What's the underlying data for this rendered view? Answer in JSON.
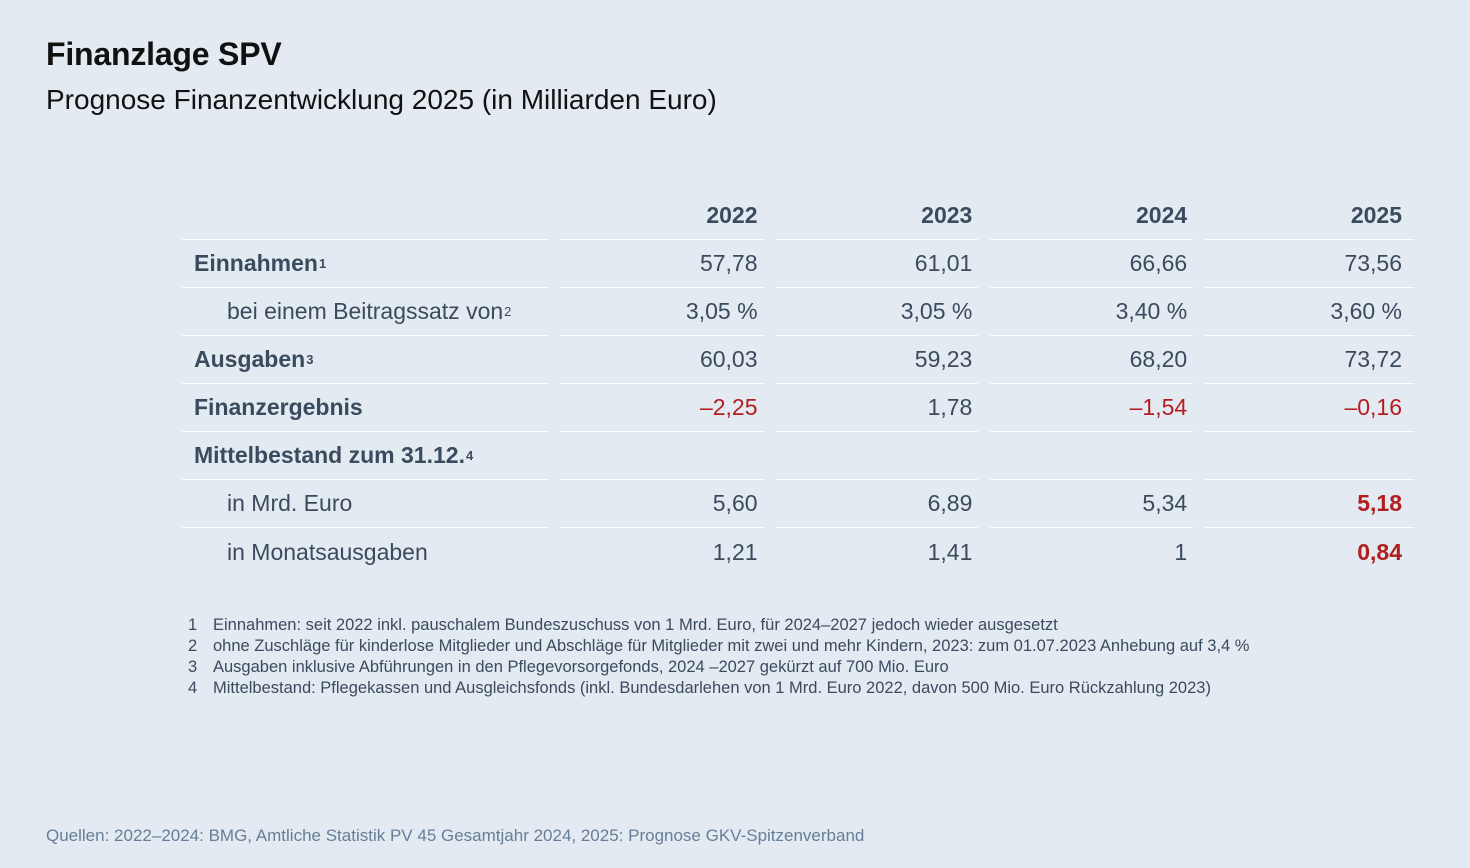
{
  "title": "Finanzlage SPV",
  "subtitle": "Prognose Finanzentwicklung 2025 (in Milliarden Euro)",
  "table": {
    "columns": [
      "2022",
      "2023",
      "2024",
      "2025"
    ],
    "rows": [
      {
        "label": "Einnahmen",
        "sup": "1",
        "values": [
          "57,78",
          "61,01",
          "66,66",
          "73,56"
        ]
      },
      {
        "label": "bei einem Beitragssatz von",
        "sup": "2",
        "values": [
          "3,05 %",
          "3,05 %",
          "3,40 %",
          "3,60 %"
        ]
      },
      {
        "label": "Ausgaben",
        "sup": "3",
        "values": [
          "60,03",
          "59,23",
          "68,20",
          "73,72"
        ]
      },
      {
        "label": "Finanzergebnis",
        "values": [
          "–2,25",
          "1,78",
          "–1,54",
          "–0,16"
        ]
      },
      {
        "label": "Mittelbestand zum 31.12.",
        "sup": "4"
      },
      {
        "label": "in Mrd. Euro",
        "values": [
          "5,60",
          "6,89",
          "5,34",
          "5,18"
        ]
      },
      {
        "label": "in Monatsausgaben",
        "values": [
          "1,21",
          "1,41",
          "1",
          "0,84"
        ]
      }
    ]
  },
  "footnotes": [
    {
      "num": "1",
      "text": "Einnahmen: seit 2022 inkl. pauschalem Bundeszuschuss von 1 Mrd. Euro, für 2024–2027 jedoch wieder ausgesetzt"
    },
    {
      "num": "2",
      "text": "ohne Zuschläge für kinderlose Mitglieder und Abschläge für Mitglieder mit zwei und mehr Kindern, 2023: zum 01.07.2023 Anhebung auf 3,4 %"
    },
    {
      "num": "3",
      "text": "Ausgaben inklusive Abführungen in den Pflegevorsorgefonds, 2024 –2027 gekürzt auf 700 Mio. Euro"
    },
    {
      "num": "4",
      "text": "Mittelbestand: Pflegekassen und Ausgleichsfonds (inkl. Bundesdarlehen von 1 Mrd. Euro 2022, davon 500 Mio. Euro Rückzahlung 2023)"
    }
  ],
  "source": "Quellen: 2022–2024: BMG, Amtliche Statistik PV 45 Gesamtjahr 2024, 2025: Prognose GKV-Spitzenverband",
  "colors": {
    "background": "#e3eaf2",
    "text": "#3b4b5e",
    "negative": "#b21d1d",
    "source_text": "#667e98"
  }
}
